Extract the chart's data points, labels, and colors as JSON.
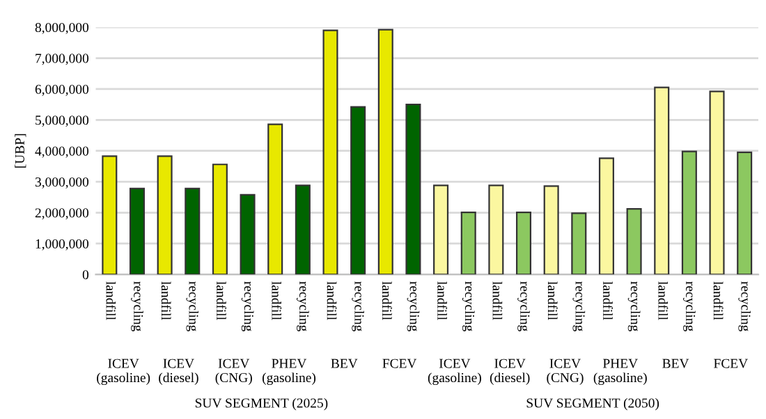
{
  "chart_data": {
    "type": "bar",
    "ylabel": "[UBP]",
    "categories": [
      "landfill",
      "recycling",
      "landfill",
      "recycling",
      "landfill",
      "recycling",
      "landfill",
      "recycling",
      "landfill",
      "recycling",
      "landfill",
      "recycling",
      "landfill",
      "recycling",
      "landfill",
      "recycling",
      "landfill",
      "recycling",
      "landfill",
      "recycling",
      "landfill",
      "recycling",
      "landfill",
      "recycling"
    ],
    "values": [
      3830000,
      2780000,
      3830000,
      2780000,
      3560000,
      2580000,
      4860000,
      2880000,
      7900000,
      5420000,
      7920000,
      5500000,
      2880000,
      2010000,
      2880000,
      2010000,
      2860000,
      1980000,
      3760000,
      2120000,
      6050000,
      3980000,
      5920000,
      3950000
    ],
    "colors": [
      "#e8e800",
      "#006400",
      "#e8e800",
      "#006400",
      "#e8e800",
      "#006400",
      "#e8e800",
      "#006400",
      "#e8e800",
      "#006400",
      "#e8e800",
      "#006400",
      "#fbf7a0",
      "#8cc860",
      "#fbf7a0",
      "#8cc860",
      "#fbf7a0",
      "#8cc860",
      "#fbf7a0",
      "#8cc860",
      "#fbf7a0",
      "#8cc860",
      "#fbf7a0",
      "#8cc860"
    ],
    "ylim": [
      0,
      8000000
    ],
    "yticks": [
      {
        "value": 0,
        "label": "0"
      },
      {
        "value": 1000000,
        "label": "1,000,000"
      },
      {
        "value": 2000000,
        "label": "2,000,000"
      },
      {
        "value": 3000000,
        "label": "3,000,000"
      },
      {
        "value": 4000000,
        "label": "4,000,000"
      },
      {
        "value": 5000000,
        "label": "5,000,000"
      },
      {
        "value": 6000000,
        "label": "6,000,000"
      },
      {
        "value": 7000000,
        "label": "7,000,000"
      },
      {
        "value": 8000000,
        "label": "8,000,000"
      }
    ],
    "grid": "y",
    "annotations": [
      "ICEV\n(gasoline)",
      "ICEV\n(diesel)",
      "ICEV\n(CNG)",
      "PHEV\n(gasoline)",
      "BEV",
      "FCEV",
      "ICEV\n(gasoline)",
      "ICEV\n(diesel)",
      "ICEV\n(CNG)",
      "PHEV\n(gasoline)",
      "BEV",
      "FCEV",
      "SUV SEGMENT (2025)",
      "SUV SEGMENT (2050)"
    ]
  }
}
